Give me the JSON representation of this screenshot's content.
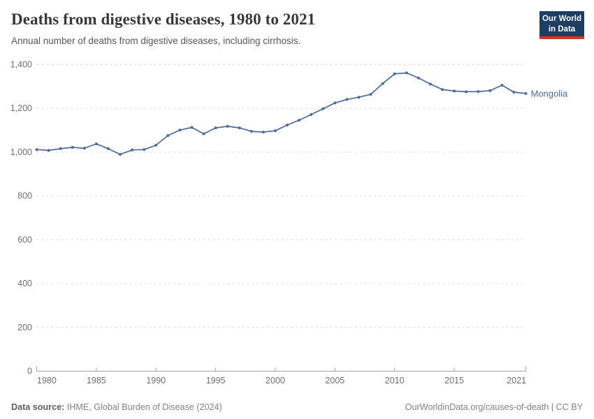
{
  "header": {
    "title": "Deaths from digestive diseases, 1980 to 2021",
    "subtitle": "Annual number of deaths from digestive diseases, including cirrhosis.",
    "logo": {
      "line1": "Our World",
      "line2": "in Data",
      "bg_color": "#1d3d63",
      "bar_color": "#dc3223"
    }
  },
  "chart_data": {
    "type": "line",
    "title": "Deaths from digestive diseases, 1980 to 2021",
    "xlabel": "",
    "ylabel": "",
    "xlim": [
      1980,
      2021
    ],
    "ylim": [
      0,
      1400
    ],
    "x_ticks": [
      1980,
      1985,
      1990,
      1995,
      2000,
      2005,
      2010,
      2015,
      2021
    ],
    "y_ticks": [
      0,
      200,
      400,
      600,
      800,
      1000,
      1200,
      1400
    ],
    "grid": "horizontal-dashed",
    "legend_position": "end-of-line",
    "colors": {
      "grid": "#dcdcdc",
      "axis": "#a3a3a3",
      "tick_text": "#6e6e6e"
    },
    "series": [
      {
        "name": "Mongolia",
        "color": "#4c6a9c",
        "x": [
          1980,
          1981,
          1982,
          1983,
          1984,
          1985,
          1986,
          1987,
          1988,
          1989,
          1990,
          1991,
          1992,
          1993,
          1994,
          1995,
          1996,
          1997,
          1998,
          1999,
          2000,
          2001,
          2002,
          2003,
          2004,
          2005,
          2006,
          2007,
          2008,
          2009,
          2010,
          2011,
          2012,
          2013,
          2014,
          2015,
          2016,
          2017,
          2018,
          2019,
          2020,
          2021
        ],
        "values": [
          1012,
          1008,
          1016,
          1022,
          1018,
          1038,
          1016,
          990,
          1010,
          1012,
          1032,
          1076,
          1101,
          1113,
          1084,
          1111,
          1118,
          1111,
          1095,
          1092,
          1098,
          1124,
          1146,
          1172,
          1198,
          1225,
          1241,
          1251,
          1264,
          1313,
          1358,
          1362,
          1339,
          1311,
          1286,
          1279,
          1276,
          1277,
          1281,
          1306,
          1274,
          1268
        ]
      }
    ]
  },
  "footer": {
    "source_label": "Data source:",
    "source_text": " IHME, Global Burden of Disease (2024)",
    "right_text": "OurWorldinData.org/causes-of-death | CC BY"
  }
}
